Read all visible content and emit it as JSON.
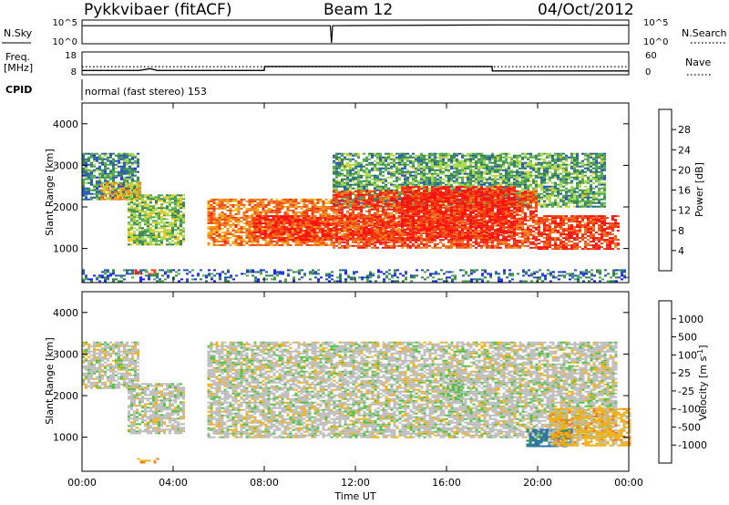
{
  "header": {
    "station": "Pykkvibaer (fitACF)",
    "beam": "Beam 12",
    "date": "04/Oct/2012"
  },
  "strips": {
    "noise": {
      "left_label": "N.Sky",
      "right_label": "N.Search",
      "left_ticks": [
        "10^5",
        "10^0"
      ],
      "right_ticks": [
        "10^5",
        "10^0"
      ]
    },
    "frequency": {
      "left_label_1": "Freq.",
      "left_label_2": "[MHz]",
      "right_label": "Nave",
      "left_ticks": [
        "18",
        "8"
      ],
      "right_ticks": [
        "60",
        "0"
      ]
    },
    "cpid": {
      "label": "CPID",
      "value": "normal (fast stereo) 153"
    }
  },
  "axes": {
    "ylabel": "Slant Range [km]",
    "xlabel": "Time UT",
    "x_ticks": [
      "00:00",
      "04:00",
      "08:00",
      "12:00",
      "16:00",
      "20:00",
      "00:00"
    ],
    "y_ticks": [
      "1000",
      "2000",
      "3000",
      "4000"
    ]
  },
  "colorbars": {
    "power": {
      "label": "Power [dB]",
      "ticks": [
        "4",
        "8",
        "12",
        "16",
        "20",
        "24",
        "28"
      ],
      "colors": [
        "#1a1aff",
        "#2050c0",
        "#2f7f4f",
        "#4fa84f",
        "#a8d848",
        "#f0c818",
        "#f09a20",
        "#f07018",
        "#f04010",
        "#ff1010"
      ]
    },
    "velocity": {
      "label": "Velocity [m s",
      "label_sup": "-1",
      "label_end": "]",
      "ticks": [
        "1000",
        "500",
        "100",
        "25",
        "-25",
        "-100",
        "-500",
        "-1000"
      ],
      "colors": [
        "#1a3fc0",
        "#2f6fb0",
        "#2f8f5f",
        "#50c040",
        "#bcbcbc",
        "#f0b010",
        "#f07818",
        "#f04010",
        "#ff1010"
      ]
    }
  },
  "chart_data": [
    {
      "type": "line",
      "name": "noise",
      "x_range_hours": [
        0,
        24
      ],
      "yscale": "log",
      "ylim": [
        1,
        100000
      ],
      "series": [
        {
          "name": "N.Sky",
          "x": [
            0,
            10.9,
            10.95,
            11.0,
            18.5,
            24
          ],
          "y": [
            30000,
            30000,
            1,
            30000,
            50000,
            40000
          ]
        }
      ]
    },
    {
      "type": "line",
      "name": "frequency",
      "x_range_hours": [
        0,
        24
      ],
      "ylim_freq": [
        8,
        18
      ],
      "ylim_nave": [
        0,
        60
      ],
      "series": [
        {
          "name": "Freq.",
          "x": [
            0,
            2.5,
            3.0,
            3.3,
            8.0,
            8.01,
            18.0,
            18.01,
            24
          ],
          "y": [
            10.5,
            10.5,
            11.5,
            10.5,
            10.5,
            12.8,
            12.8,
            10.2,
            10.2
          ]
        },
        {
          "name": "Nave",
          "x": [
            0,
            24
          ],
          "y": [
            28,
            28
          ]
        }
      ]
    },
    {
      "type": "heatmap",
      "name": "power",
      "xlabel": "Time UT",
      "ylabel": "Slant Range [km]",
      "xlim_hours": [
        0,
        24
      ],
      "ylim_km": [
        180,
        4500
      ],
      "zlim_db": [
        0,
        30
      ],
      "regions": [
        {
          "t": [
            0,
            2.5
          ],
          "r": [
            2200,
            3300
          ],
          "v": 8
        },
        {
          "t": [
            0.8,
            2.5
          ],
          "r": [
            2200,
            2600
          ],
          "v": 18
        },
        {
          "t": [
            2.0,
            4.5
          ],
          "r": [
            1100,
            2300
          ],
          "v": 12
        },
        {
          "t": [
            2.3,
            3.3
          ],
          "r": [
            400,
            500
          ],
          "v": 28
        },
        {
          "t": [
            5.5,
            11.0
          ],
          "r": [
            1100,
            2200
          ],
          "v": 22
        },
        {
          "t": [
            7.5,
            14.0
          ],
          "r": [
            1200,
            1800
          ],
          "v": 27
        },
        {
          "t": [
            11.0,
            23.0
          ],
          "r": [
            2000,
            3300
          ],
          "v": 10
        },
        {
          "t": [
            11.0,
            20.0
          ],
          "r": [
            1000,
            2400
          ],
          "v": 25
        },
        {
          "t": [
            14.0,
            19.0
          ],
          "r": [
            1200,
            2500
          ],
          "v": 28
        },
        {
          "t": [
            20.0,
            23.5
          ],
          "r": [
            1000,
            1800
          ],
          "v": 26
        },
        {
          "t": [
            0,
            24
          ],
          "r": [
            200,
            500
          ],
          "v": 6
        }
      ]
    },
    {
      "type": "heatmap",
      "name": "velocity",
      "xlabel": "Time UT",
      "ylabel": "Slant Range [km]",
      "xlim_hours": [
        0,
        24
      ],
      "ylim_km": [
        180,
        4500
      ],
      "zlim_ms": [
        -1000,
        1000
      ],
      "regions": [
        {
          "t": [
            0,
            2.5
          ],
          "r": [
            2200,
            3300
          ],
          "v": 0
        },
        {
          "t": [
            2.0,
            4.5
          ],
          "r": [
            1100,
            2300
          ],
          "v": 0
        },
        {
          "t": [
            2.3,
            3.3
          ],
          "r": [
            400,
            500
          ],
          "v": -300
        },
        {
          "t": [
            5.5,
            23.5
          ],
          "r": [
            1000,
            3300
          ],
          "v": 0
        },
        {
          "t": [
            16.0,
            16.6
          ],
          "r": [
            1800,
            2500
          ],
          "v": 80
        },
        {
          "t": [
            19.5,
            21.5
          ],
          "r": [
            800,
            1200
          ],
          "v": 600
        },
        {
          "t": [
            20.5,
            24.0
          ],
          "r": [
            800,
            1700
          ],
          "v": -200
        }
      ]
    }
  ]
}
